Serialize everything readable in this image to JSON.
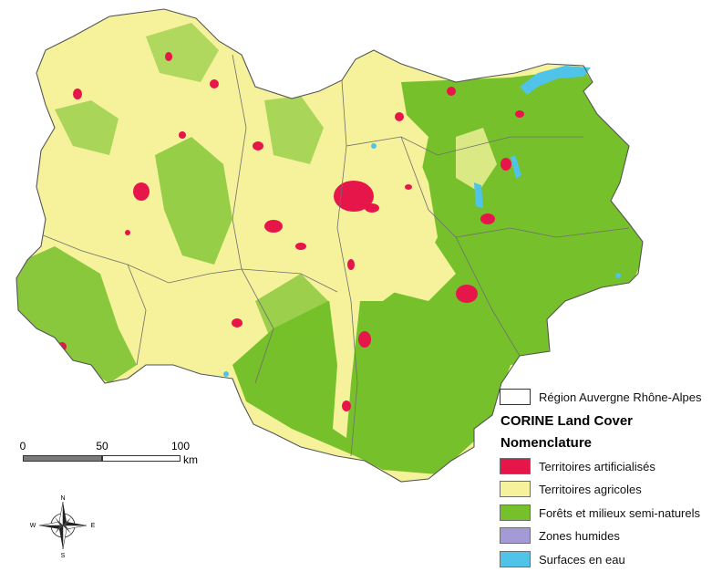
{
  "map": {
    "region_border_color": "#6e6e6e",
    "colors": {
      "artificial": "#e6164a",
      "agricultural": "#f5f29b",
      "forest": "#76c12b",
      "wetlands": "#a49bd6",
      "water": "#4fc3e8"
    }
  },
  "legend": {
    "region_label": "Région Auvergne Rhône-Alpes",
    "title_line1": "CORINE Land Cover",
    "title_line2": "Nomenclature",
    "items": [
      {
        "label": "Territoires artificialisés",
        "color": "#e6164a"
      },
      {
        "label": "Territoires agricoles",
        "color": "#f5f29b"
      },
      {
        "label": "Forêts et milieux semi-naturels",
        "color": "#76c12b"
      },
      {
        "label": "Zones humides",
        "color": "#a49bd6"
      },
      {
        "label": "Surfaces en eau",
        "color": "#4fc3e8"
      }
    ]
  },
  "scale": {
    "ticks": [
      "0",
      "50",
      "100"
    ],
    "unit": "km"
  },
  "compass": {
    "n": "N",
    "s": "S",
    "e": "E",
    "w": "W"
  }
}
